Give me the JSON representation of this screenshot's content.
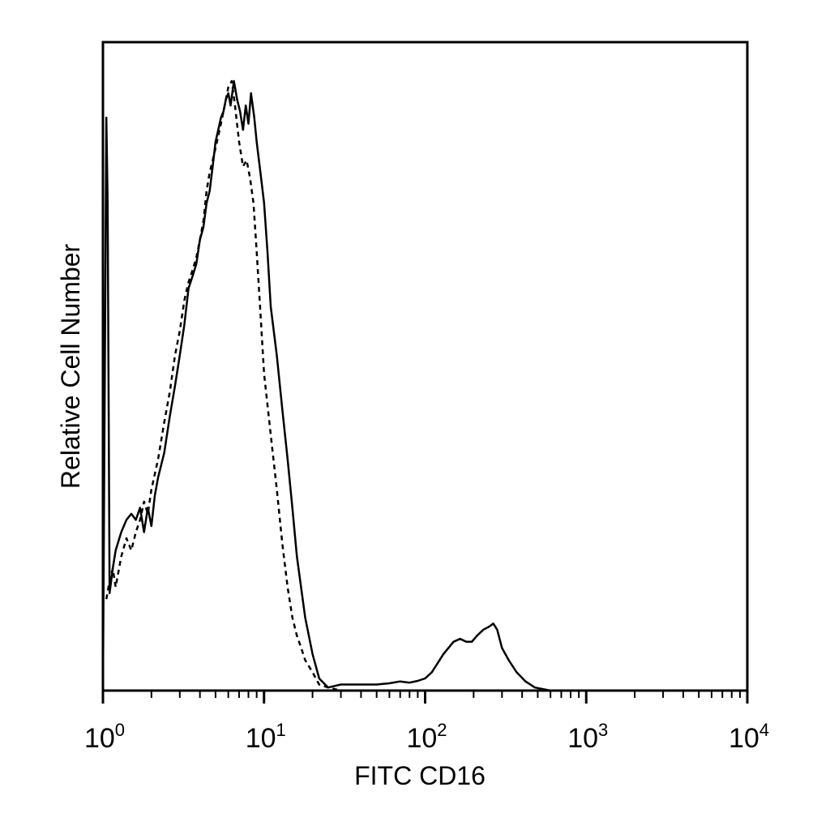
{
  "chart_data": {
    "type": "area",
    "title": "",
    "xlabel": "FITC CD16",
    "ylabel": "Relative Cell Number",
    "xscale": "log",
    "xlim": [
      1,
      10000
    ],
    "ylim": [
      0,
      100
    ],
    "grid": false,
    "legend": "none",
    "x_ticks": [
      {
        "value": 1,
        "base": "10",
        "exp": "0"
      },
      {
        "value": 10,
        "base": "10",
        "exp": "1"
      },
      {
        "value": 100,
        "base": "10",
        "exp": "2"
      },
      {
        "value": 1000,
        "base": "10",
        "exp": "3"
      },
      {
        "value": 10000,
        "base": "10",
        "exp": "4"
      }
    ],
    "series": [
      {
        "style": "solid",
        "color": "#000000",
        "x": [
          1.0,
          1.05,
          1.07,
          1.1,
          1.15,
          1.2,
          1.3,
          1.4,
          1.5,
          1.6,
          1.7,
          1.8,
          1.9,
          2.0,
          2.1,
          2.2,
          2.4,
          2.6,
          2.8,
          3.0,
          3.2,
          3.4,
          3.6,
          3.8,
          4.0,
          4.2,
          4.4,
          4.6,
          4.8,
          5.0,
          5.2,
          5.4,
          5.6,
          5.8,
          6.0,
          6.2,
          6.5,
          6.8,
          7.1,
          7.4,
          7.7,
          8.0,
          8.3,
          8.7,
          9.0,
          9.5,
          10.0,
          10.5,
          11.0,
          12.0,
          13.0,
          14.0,
          15.0,
          16.0,
          18.0,
          20.0,
          22.0,
          25.0,
          30.0,
          40.0,
          50.0,
          60.0,
          70.0,
          80.0,
          90.0,
          100.0,
          110.0,
          130.0,
          150.0,
          165.0,
          180.0,
          195.0,
          210.0,
          230.0,
          250.0,
          265.0,
          280.0,
          300.0,
          330.0,
          370.0,
          420.0,
          480.0,
          600.0,
          1000.0,
          3000.0,
          9000.0,
          10000.0
        ],
        "values": [
          0,
          94,
          80,
          16,
          20,
          23,
          26,
          28,
          29,
          28,
          30,
          26,
          30,
          27,
          32,
          35,
          39,
          45,
          50,
          55,
          60,
          66,
          68,
          70,
          74,
          76,
          80,
          82,
          86,
          90,
          92,
          94,
          95,
          97,
          98,
          96,
          100,
          97,
          95,
          92,
          96,
          93,
          98,
          94,
          90,
          85,
          80,
          72,
          63,
          55,
          46,
          38,
          30,
          22,
          12,
          6,
          2,
          0.5,
          1,
          1,
          1,
          1.2,
          1.5,
          1.3,
          1.6,
          2,
          3,
          6,
          8,
          8.5,
          8,
          8,
          9,
          10,
          10.5,
          11,
          10,
          7,
          5,
          3,
          1.5,
          0.5,
          0,
          0,
          0,
          0,
          0
        ]
      },
      {
        "style": "dashed",
        "color": "#000000",
        "x": [
          1.05,
          1.1,
          1.15,
          1.2,
          1.3,
          1.4,
          1.5,
          1.6,
          1.7,
          1.8,
          1.9,
          2.0,
          2.2,
          2.4,
          2.6,
          2.8,
          3.0,
          3.2,
          3.4,
          3.6,
          3.8,
          4.0,
          4.2,
          4.4,
          4.6,
          4.8,
          5.0,
          5.2,
          5.4,
          5.6,
          5.8,
          6.0,
          6.3,
          6.6,
          7.0,
          7.4,
          7.8,
          8.2,
          8.6,
          9.0,
          9.5,
          10.0,
          11.0,
          12.0,
          13.0,
          14.0,
          15.0,
          16.0,
          17.0,
          18.0,
          20.0,
          22.0,
          25.0,
          30.0,
          100.0,
          1000.0,
          10000.0
        ],
        "values": [
          15,
          18,
          20,
          17,
          22,
          25,
          23,
          26,
          28,
          31,
          29,
          33,
          38,
          44,
          49,
          55,
          59,
          64,
          67,
          69,
          71,
          74,
          77,
          82,
          85,
          87,
          89,
          91,
          93,
          95,
          97,
          99,
          100,
          96,
          90,
          86,
          87,
          84,
          80,
          72,
          62,
          52,
          42,
          33,
          24,
          17,
          12,
          9,
          7,
          5,
          3,
          1,
          0.5,
          0,
          0,
          0,
          0
        ]
      }
    ]
  }
}
